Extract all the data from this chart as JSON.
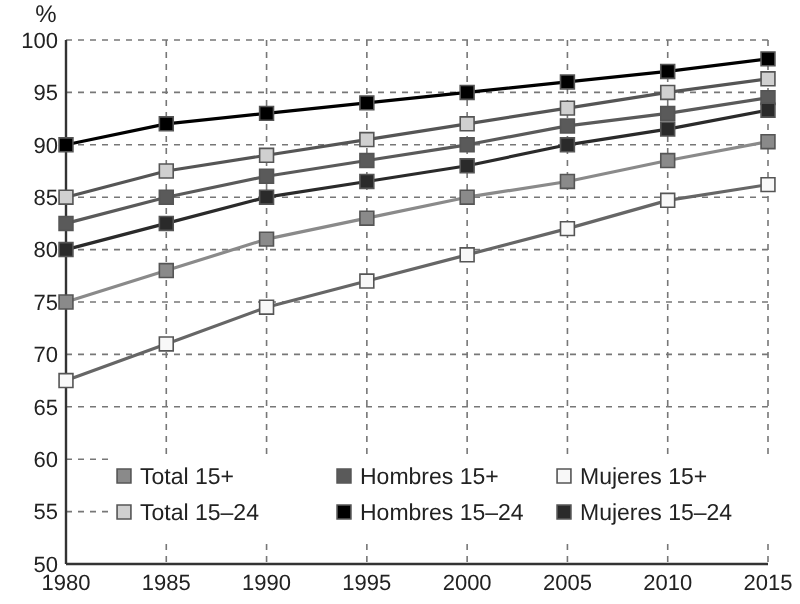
{
  "chart_data": {
    "type": "line",
    "ylabel": "%",
    "x": [
      1980,
      1985,
      1990,
      1995,
      2000,
      2005,
      2010,
      2015
    ],
    "xlim": [
      1980,
      2015
    ],
    "xticks": [
      1980,
      1985,
      1990,
      1995,
      2000,
      2005,
      2010,
      2015
    ],
    "ylim": [
      50,
      100
    ],
    "yticks": [
      50,
      55,
      60,
      65,
      70,
      75,
      80,
      85,
      90,
      95,
      100
    ],
    "grid": true,
    "legend": "bottom",
    "marker": "square",
    "line_style": "solid",
    "series": [
      {
        "name": "Total 15+",
        "color": "#8a8a8a",
        "values": [
          75,
          78,
          81,
          83,
          85,
          86.5,
          88.5,
          90.3
        ]
      },
      {
        "name": "Hombres 15+",
        "color": "#5a5a5a",
        "values": [
          82.5,
          85,
          87,
          88.5,
          90,
          91.8,
          93,
          94.5
        ]
      },
      {
        "name": "Mujeres 15+",
        "color": "#f8f8f8",
        "values": [
          67.5,
          71,
          74.5,
          77,
          79.5,
          82,
          84.7,
          86.2
        ]
      },
      {
        "name": "Total 15–24",
        "color": "#d0d0d0",
        "values": [
          85,
          87.5,
          89,
          90.5,
          92,
          93.5,
          95,
          96.3
        ]
      },
      {
        "name": "Hombres 15–24",
        "color": "#000000",
        "values": [
          90,
          92,
          93,
          94,
          95,
          96,
          97,
          98.2
        ]
      },
      {
        "name": "Mujeres 15–24",
        "color": "#2a2a2a",
        "values": [
          80,
          82.5,
          85,
          86.5,
          88,
          90,
          91.5,
          93.3
        ]
      }
    ]
  }
}
